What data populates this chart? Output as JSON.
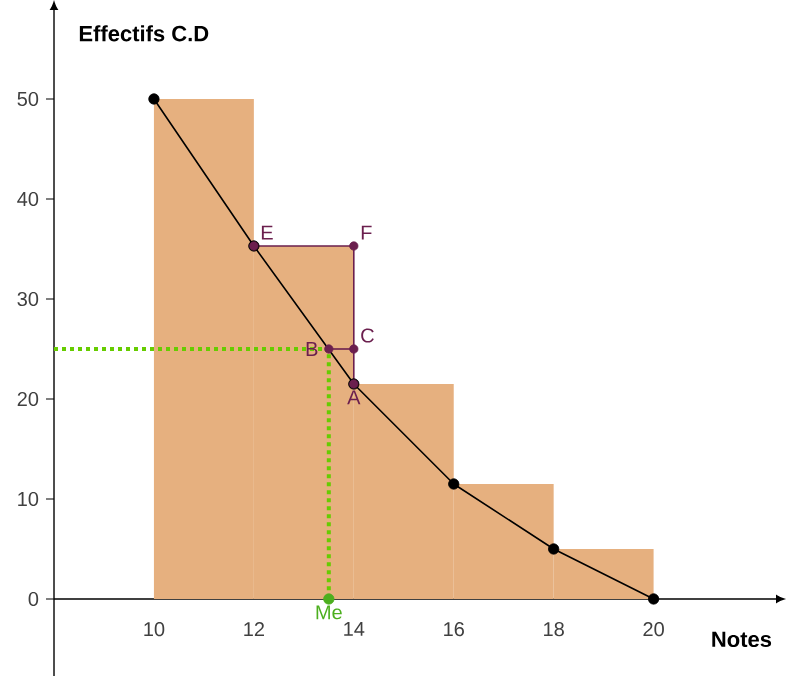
{
  "chart_data": {
    "type": "histogram",
    "ylabel": "Effectifs C.D",
    "xlabel": "Notes",
    "bins": [
      10,
      12,
      14,
      16,
      18,
      20
    ],
    "values": [
      50,
      35.3,
      21.5,
      11.5,
      5
    ],
    "color": "#e6b07f",
    "series": [
      {
        "type": "line",
        "color": "#000000",
        "marker": "circle",
        "x": [
          10,
          12,
          14,
          16,
          18,
          20
        ],
        "values": [
          50,
          35.3,
          21.5,
          11.5,
          5,
          0
        ]
      },
      {
        "type": "line",
        "color": "#6b1f4e",
        "marker": "circle",
        "x": [
          12,
          14,
          14
        ],
        "values": [
          35.3,
          35.3,
          21.5
        ]
      },
      {
        "type": "line",
        "color": "#6b1f4e",
        "marker": "circle",
        "x": [
          13.5,
          14
        ],
        "values": [
          25,
          25
        ]
      },
      {
        "type": "line",
        "color": "#66cc00",
        "line_style": "dotted",
        "marker": "none",
        "x": [
          8,
          13.5,
          13.5
        ],
        "values": [
          25,
          25,
          0
        ]
      },
      {
        "type": "scatter",
        "color": "#4caf1e",
        "marker": "circle",
        "x": [
          13.5
        ],
        "values": [
          0
        ]
      }
    ],
    "annotations": [
      {
        "text": "E",
        "x": 12,
        "y": 35.3
      },
      {
        "text": "F",
        "x": 14,
        "y": 35.3
      },
      {
        "text": "B",
        "x": 13.5,
        "y": 25
      },
      {
        "text": "C",
        "x": 14,
        "y": 25
      },
      {
        "text": "A",
        "x": 14,
        "y": 21.5
      },
      {
        "text": "Me",
        "x": 13.5,
        "y": 0
      }
    ],
    "xlim": [
      8,
      22.45
    ],
    "ylim": [
      -7.7,
      58.9
    ],
    "xticks": [
      10,
      12,
      14,
      16,
      18,
      20
    ],
    "yticks": [
      0,
      10,
      20,
      30,
      40,
      50
    ],
    "grid": false
  }
}
